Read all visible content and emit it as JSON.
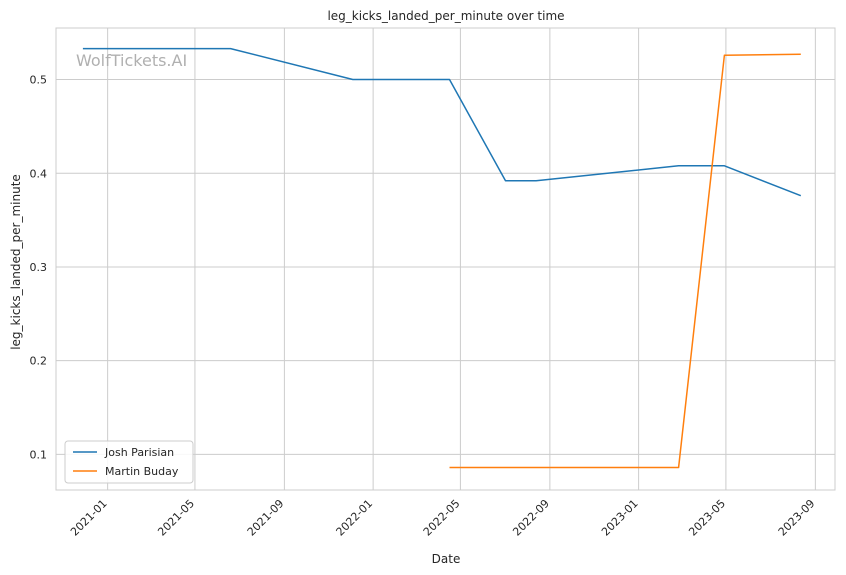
{
  "chart_data": {
    "type": "line",
    "title": "leg_kicks_landed_per_minute over time",
    "xlabel": "Date",
    "ylabel": "leg_kicks_landed_per_minute",
    "watermark": "WolfTickets.AI",
    "x_ticks": [
      "2021-01",
      "2021-05",
      "2021-09",
      "2022-01",
      "2022-05",
      "2022-09",
      "2023-01",
      "2023-05",
      "2023-09"
    ],
    "y_ticks": [
      "0.1",
      "0.2",
      "0.3",
      "0.4",
      "0.5"
    ],
    "xlim": [
      "2020-10-22",
      "2023-09-28"
    ],
    "ylim": [
      0.062,
      0.555
    ],
    "grid": true,
    "legend_position": "lower-left",
    "series": [
      {
        "name": "Josh Parisian",
        "color": "#1f77b4",
        "points": [
          [
            "2020-11-28",
            0.533
          ],
          [
            "2021-06-19",
            0.533
          ],
          [
            "2021-12-04",
            0.5
          ],
          [
            "2022-04-16",
            0.5
          ],
          [
            "2022-07-02",
            0.392
          ],
          [
            "2022-08-13",
            0.392
          ],
          [
            "2023-02-25",
            0.408
          ],
          [
            "2023-04-29",
            0.408
          ],
          [
            "2023-08-12",
            0.376
          ]
        ]
      },
      {
        "name": "Martin Buday",
        "color": "#ff7f0e",
        "points": [
          [
            "2022-04-16",
            0.086
          ],
          [
            "2023-02-25",
            0.086
          ],
          [
            "2023-04-29",
            0.526
          ],
          [
            "2023-08-12",
            0.527
          ]
        ]
      }
    ]
  }
}
